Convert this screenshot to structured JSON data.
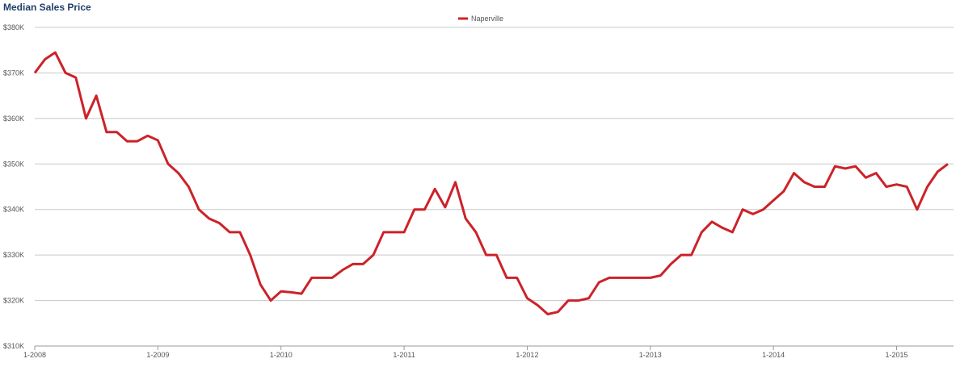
{
  "chart_data": {
    "type": "line",
    "title": "Median Sales Price",
    "categories": [
      "1-2008",
      null,
      null,
      null,
      null,
      null,
      null,
      null,
      null,
      null,
      null,
      null,
      "1-2009",
      null,
      null,
      null,
      null,
      null,
      null,
      null,
      null,
      null,
      null,
      null,
      "1-2010",
      null,
      null,
      null,
      null,
      null,
      null,
      null,
      null,
      null,
      null,
      null,
      "1-2011",
      null,
      null,
      null,
      null,
      null,
      null,
      null,
      null,
      null,
      null,
      null,
      "1-2012",
      null,
      null,
      null,
      null,
      null,
      null,
      null,
      null,
      null,
      null,
      null,
      "1-2013",
      null,
      null,
      null,
      null,
      null,
      null,
      null,
      null,
      null,
      null,
      null,
      "1-2014",
      null,
      null,
      null,
      null,
      null,
      null,
      null,
      null,
      null,
      null,
      null,
      "1-2015",
      null,
      null,
      null,
      null,
      null
    ],
    "series": [
      {
        "name": "Naperville",
        "color": "#cc2229",
        "values": [
          370000,
          373000,
          374500,
          370000,
          369000,
          360000,
          365000,
          357000,
          357000,
          355000,
          355000,
          356200,
          355200,
          350000,
          348000,
          345000,
          340000,
          338000,
          337000,
          335000,
          335000,
          330000,
          323500,
          320000,
          322000,
          321800,
          321500,
          325000,
          325000,
          325000,
          326700,
          328000,
          328000,
          330000,
          335000,
          335000,
          335000,
          340000,
          340000,
          344500,
          340500,
          346000,
          338000,
          335000,
          330000,
          330000,
          325000,
          325000,
          320500,
          319000,
          317000,
          317500,
          320000,
          320000,
          320500,
          324000,
          325000,
          325000,
          325000,
          325000,
          325000,
          325500,
          328000,
          330000,
          330000,
          335000,
          337300,
          336000,
          335000,
          340000,
          339000,
          340000,
          342000,
          344000,
          348000,
          346000,
          345000,
          345000,
          349500,
          349000,
          349500,
          347000,
          348000,
          345000,
          345500,
          345000,
          340000,
          345000,
          348300,
          350000
        ]
      }
    ],
    "ylim": [
      310000,
      380000
    ],
    "yticks": [
      {
        "value": 310000,
        "label": "$310K"
      },
      {
        "value": 320000,
        "label": "$320K"
      },
      {
        "value": 330000,
        "label": "$330K"
      },
      {
        "value": 340000,
        "label": "$340K"
      },
      {
        "value": 350000,
        "label": "$350K"
      },
      {
        "value": 360000,
        "label": "$360K"
      },
      {
        "value": 370000,
        "label": "$370K"
      },
      {
        "value": 380000,
        "label": "$380K"
      }
    ],
    "grid": true
  }
}
